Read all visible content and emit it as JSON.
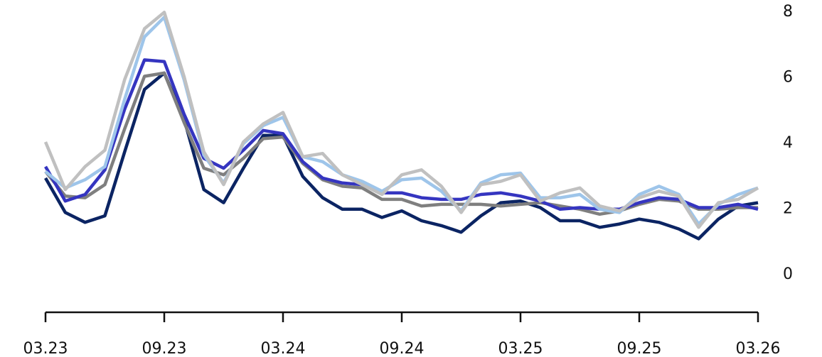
{
  "chart_data": {
    "type": "line",
    "title": "",
    "xlabel": "",
    "ylabel": "",
    "x_tick_labels": [
      "03.23",
      "09.23",
      "03.24",
      "09.24",
      "03.25",
      "09.25",
      "03.26"
    ],
    "y_tick_labels": [
      "0",
      "2",
      "4",
      "6",
      "8"
    ],
    "y_ticks": [
      0,
      2,
      4,
      6,
      8
    ],
    "ylim": [
      -1.2,
      8.2
    ],
    "xlim_months": [
      0,
      36
    ],
    "x_ticks_months": [
      0,
      6,
      12,
      18,
      24,
      30,
      36
    ],
    "x": [
      "03.23",
      "04.23",
      "05.23",
      "06.23",
      "07.23",
      "08.23",
      "09.23",
      "10.23",
      "11.23",
      "12.23",
      "01.24",
      "02.24",
      "03.24",
      "04.24",
      "05.24",
      "06.24",
      "07.24",
      "08.24",
      "09.24",
      "10.24",
      "11.24",
      "12.24",
      "01.25",
      "02.25",
      "03.25",
      "04.25",
      "05.25",
      "06.25",
      "07.25",
      "08.25",
      "09.25",
      "10.25",
      "11.25",
      "12.25",
      "01.26",
      "02.26",
      "03.26"
    ],
    "y_axis_position": "right",
    "grid": false,
    "legend": "none",
    "series": [
      {
        "color": "#0b2463",
        "values": [
          2.9,
          1.85,
          1.55,
          1.75,
          3.7,
          5.6,
          6.1,
          4.7,
          2.55,
          2.15,
          3.2,
          4.2,
          4.2,
          2.95,
          2.3,
          1.95,
          1.95,
          1.7,
          1.9,
          1.6,
          1.45,
          1.25,
          1.75,
          2.15,
          2.2,
          2.0,
          1.6,
          1.6,
          1.4,
          1.5,
          1.65,
          1.55,
          1.35,
          1.05,
          1.65,
          2.05,
          2.15
        ]
      },
      {
        "color": "#7f7f7f",
        "values": [
          3.1,
          2.35,
          2.3,
          2.7,
          4.4,
          6.0,
          6.1,
          4.6,
          3.2,
          3.0,
          3.5,
          4.1,
          4.15,
          3.35,
          2.85,
          2.65,
          2.6,
          2.25,
          2.25,
          2.05,
          2.1,
          2.1,
          2.1,
          2.05,
          2.1,
          2.15,
          2.05,
          1.95,
          1.8,
          1.9,
          2.1,
          2.25,
          2.2,
          1.95,
          1.95,
          2.0,
          2.0
        ]
      },
      {
        "color": "#3535c0",
        "values": [
          3.25,
          2.2,
          2.4,
          3.15,
          5.0,
          6.5,
          6.45,
          4.85,
          3.5,
          3.2,
          3.75,
          4.35,
          4.25,
          3.4,
          2.9,
          2.75,
          2.7,
          2.45,
          2.45,
          2.3,
          2.25,
          2.25,
          2.4,
          2.45,
          2.35,
          2.2,
          1.95,
          2.0,
          1.95,
          1.95,
          2.15,
          2.3,
          2.25,
          2.0,
          2.0,
          2.1,
          1.95
        ]
      },
      {
        "color": "#9ec5ea",
        "values": [
          3.1,
          2.6,
          2.85,
          3.25,
          5.3,
          7.2,
          7.8,
          5.9,
          3.6,
          2.75,
          3.95,
          4.5,
          4.75,
          3.55,
          3.4,
          3.0,
          2.8,
          2.5,
          2.85,
          2.9,
          2.5,
          1.9,
          2.75,
          3.0,
          3.05,
          2.3,
          2.3,
          2.4,
          1.95,
          1.85,
          2.4,
          2.65,
          2.4,
          1.5,
          2.1,
          2.4,
          2.6
        ]
      },
      {
        "color": "#c0c0c0",
        "values": [
          4.0,
          2.55,
          3.25,
          3.75,
          5.9,
          7.45,
          7.95,
          6.0,
          3.7,
          2.7,
          4.0,
          4.55,
          4.9,
          3.55,
          3.65,
          3.0,
          2.7,
          2.4,
          3.0,
          3.15,
          2.65,
          1.85,
          2.7,
          2.8,
          3.0,
          2.2,
          2.45,
          2.6,
          2.05,
          1.9,
          2.3,
          2.5,
          2.35,
          1.4,
          2.15,
          2.25,
          2.6
        ]
      }
    ]
  }
}
